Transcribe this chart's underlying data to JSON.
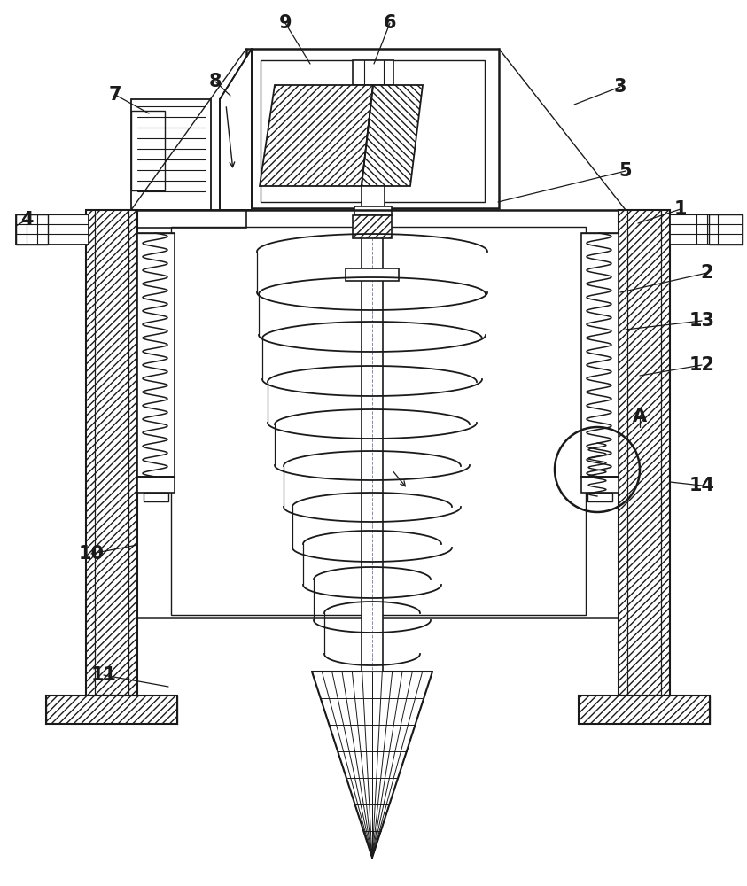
{
  "bg_color": "#ffffff",
  "lc": "#1a1a1a",
  "figsize": [
    8.43,
    10.0
  ],
  "dpi": 100
}
